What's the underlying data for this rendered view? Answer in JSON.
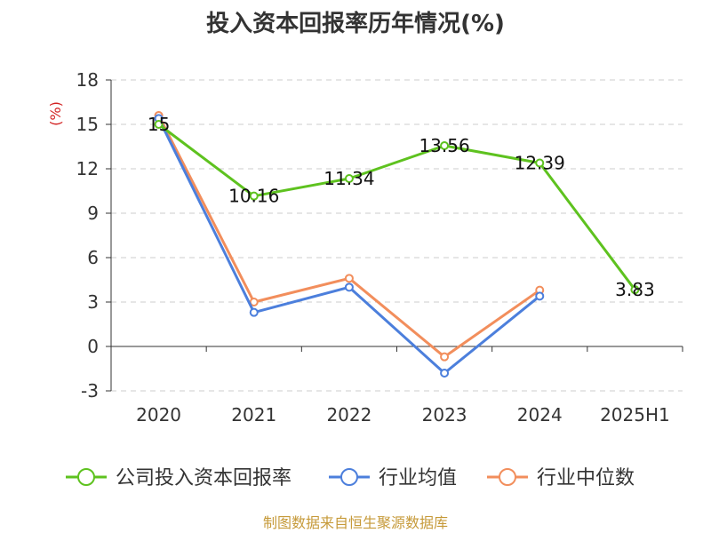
{
  "chart_data": {
    "type": "line",
    "title": "投入资本回报率历年情况(%)",
    "ylabel": "(%)",
    "categories": [
      "2020",
      "2021",
      "2022",
      "2023",
      "2024",
      "2025H1"
    ],
    "yticks": [
      "18",
      "15",
      "12",
      "9",
      "6",
      "3",
      "0",
      "-3"
    ],
    "ylim": [
      -3,
      18
    ],
    "grid": true,
    "legend_position": "bottom",
    "series": [
      {
        "name": "公司投入资本回报率",
        "color": "#5ec21f",
        "values": [
          15,
          10.16,
          11.34,
          13.56,
          12.39,
          3.83
        ],
        "labels": [
          "15",
          "10.16",
          "11.34",
          "13.56",
          "12.39",
          "3.83"
        ]
      },
      {
        "name": "行业均值",
        "color": "#4c7fdc",
        "values": [
          15.4,
          2.3,
          4.0,
          -1.8,
          3.4,
          null
        ]
      },
      {
        "name": "行业中位数",
        "color": "#f28e5c",
        "values": [
          15.6,
          3.0,
          4.6,
          -0.7,
          3.8,
          null
        ]
      }
    ]
  },
  "footer": "制图数据来自恒生聚源数据库"
}
